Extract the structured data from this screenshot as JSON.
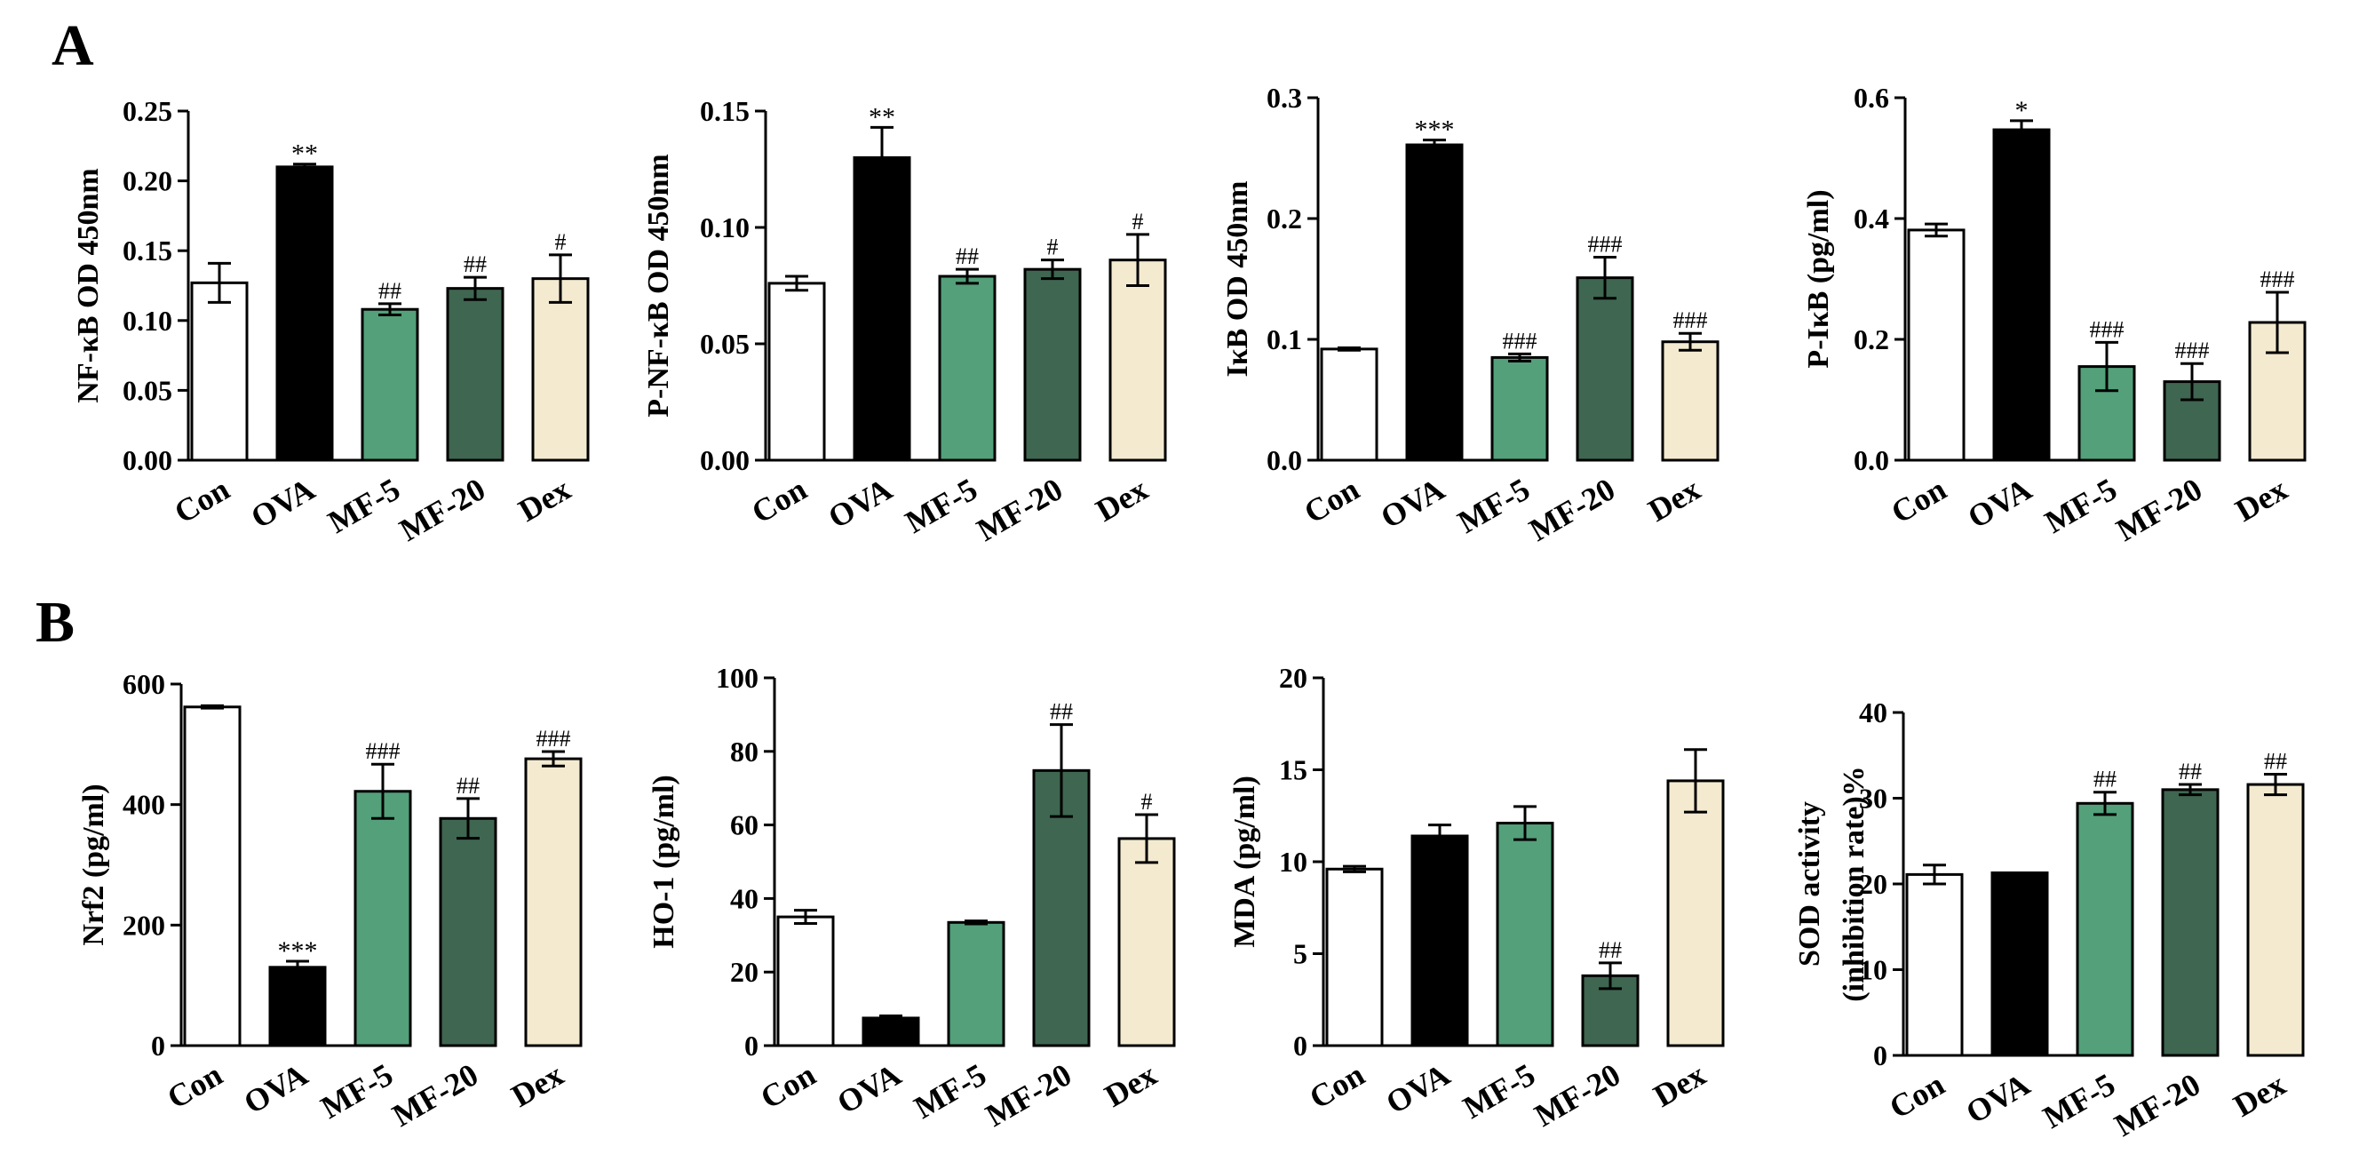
{
  "panel_labels": [
    "A",
    "B"
  ],
  "colors": {
    "Con": "#ffffff",
    "OVA": "#000000",
    "MF-5": "#53a07a",
    "MF-20": "#3f6650",
    "Dex": "#f3ead0"
  },
  "chart_data": [
    {
      "type": "bar",
      "panel": "A",
      "title": "",
      "xlabel": "",
      "ylabel": "NF-κB  OD 450nm",
      "categories": [
        "Con",
        "OVA",
        "MF-5",
        "MF-20",
        "Dex"
      ],
      "values": [
        0.127,
        0.21,
        0.108,
        0.123,
        0.13
      ],
      "errors": [
        0.014,
        0.002,
        0.004,
        0.008,
        0.017
      ],
      "annotations": [
        "",
        "**",
        "##",
        "##",
        "#"
      ],
      "ylim": [
        0,
        0.25
      ],
      "yticks": [
        0.0,
        0.05,
        0.1,
        0.15,
        0.2,
        0.25
      ],
      "ytick_labels": [
        "0.00",
        "0.05",
        "0.10",
        "0.15",
        "0.20",
        "0.25"
      ]
    },
    {
      "type": "bar",
      "panel": "A",
      "title": "",
      "xlabel": "",
      "ylabel": "P-NF-κB  OD 450nm",
      "categories": [
        "Con",
        "OVA",
        "MF-5",
        "MF-20",
        "Dex"
      ],
      "values": [
        0.076,
        0.13,
        0.079,
        0.082,
        0.086
      ],
      "errors": [
        0.003,
        0.013,
        0.003,
        0.004,
        0.011
      ],
      "annotations": [
        "",
        "**",
        "##",
        "#",
        "#"
      ],
      "ylim": [
        0,
        0.15
      ],
      "yticks": [
        0.0,
        0.05,
        0.1,
        0.15
      ],
      "ytick_labels": [
        "0.00",
        "0.05",
        "0.10",
        "0.15"
      ]
    },
    {
      "type": "bar",
      "panel": "A",
      "title": "",
      "xlabel": "",
      "ylabel": "IκB OD 450nm",
      "categories": [
        "Con",
        "OVA",
        "MF-5",
        "MF-20",
        "Dex"
      ],
      "values": [
        0.092,
        0.261,
        0.085,
        0.151,
        0.098
      ],
      "errors": [
        0.001,
        0.004,
        0.003,
        0.017,
        0.007
      ],
      "annotations": [
        "",
        "***",
        "###",
        "###",
        "###"
      ],
      "ylim": [
        0,
        0.3
      ],
      "yticks": [
        0.0,
        0.1,
        0.2,
        0.3
      ],
      "ytick_labels": [
        "0.0",
        "0.1",
        "0.2",
        "0.3"
      ]
    },
    {
      "type": "bar",
      "panel": "A",
      "title": "",
      "xlabel": "",
      "ylabel": "P-IκB  (pg/ml)",
      "categories": [
        "Con",
        "OVA",
        "MF-5",
        "MF-20",
        "Dex"
      ],
      "values": [
        0.381,
        0.547,
        0.155,
        0.13,
        0.228
      ],
      "errors": [
        0.01,
        0.015,
        0.04,
        0.03,
        0.05
      ],
      "annotations": [
        "",
        "*",
        "###",
        "###",
        "###"
      ],
      "ylim": [
        0,
        0.6
      ],
      "yticks": [
        0.0,
        0.2,
        0.4,
        0.6
      ],
      "ytick_labels": [
        "0.0",
        "0.2",
        "0.4",
        "0.6"
      ]
    },
    {
      "type": "bar",
      "panel": "B",
      "title": "",
      "xlabel": "",
      "ylabel": "Nrf2  (pg/ml)",
      "categories": [
        "Con",
        "OVA",
        "MF-5",
        "MF-20",
        "Dex"
      ],
      "values": [
        562,
        130,
        422,
        377,
        476
      ],
      "errors": [
        2,
        10,
        45,
        33,
        12
      ],
      "annotations": [
        "",
        "***",
        "###",
        "##",
        "###"
      ],
      "ylim": [
        0,
        600
      ],
      "yticks": [
        0,
        200,
        400,
        600
      ],
      "ytick_labels": [
        "0",
        "200",
        "400",
        "600"
      ]
    },
    {
      "type": "bar",
      "panel": "B",
      "title": "",
      "xlabel": "",
      "ylabel": "HO-1  (pg/ml)",
      "categories": [
        "Con",
        "OVA",
        "MF-5",
        "MF-20",
        "Dex"
      ],
      "values": [
        35.0,
        7.5,
        33.5,
        74.8,
        56.3
      ],
      "errors": [
        1.8,
        0.6,
        0.4,
        12.5,
        6.5
      ],
      "annotations": [
        "",
        "",
        "",
        "##",
        "#"
      ],
      "ylim": [
        0,
        100
      ],
      "yticks": [
        0,
        20,
        40,
        60,
        80,
        100
      ],
      "ytick_labels": [
        "0",
        "20",
        "40",
        "60",
        "80",
        "100"
      ]
    },
    {
      "type": "bar",
      "panel": "B",
      "title": "",
      "xlabel": "",
      "ylabel": "MDA  (pg/ml)",
      "categories": [
        "Con",
        "OVA",
        "MF-5",
        "MF-20",
        "Dex"
      ],
      "values": [
        9.6,
        11.4,
        12.1,
        3.8,
        14.4
      ],
      "errors": [
        0.15,
        0.6,
        0.9,
        0.7,
        1.7
      ],
      "annotations": [
        "",
        "",
        "",
        "##",
        ""
      ],
      "ylim": [
        0,
        20
      ],
      "yticks": [
        0,
        5,
        10,
        15,
        20
      ],
      "ytick_labels": [
        "0",
        "5",
        "10",
        "15",
        "20"
      ]
    },
    {
      "type": "bar",
      "panel": "B",
      "title": "",
      "xlabel": "",
      "ylabel": "SOD activity",
      "ylabel2": "(inhibition rate)%",
      "categories": [
        "Con",
        "OVA",
        "MF-5",
        "MF-20",
        "Dex"
      ],
      "values": [
        21.1,
        21.3,
        29.4,
        31.0,
        31.6
      ],
      "errors": [
        1.1,
        0.0,
        1.3,
        0.6,
        1.2
      ],
      "annotations": [
        "",
        "",
        "##",
        "##",
        "##"
      ],
      "ylim": [
        0,
        40
      ],
      "yticks": [
        0,
        10,
        20,
        30,
        40
      ],
      "ytick_labels": [
        "0",
        "10",
        "20",
        "30",
        "40"
      ]
    }
  ]
}
